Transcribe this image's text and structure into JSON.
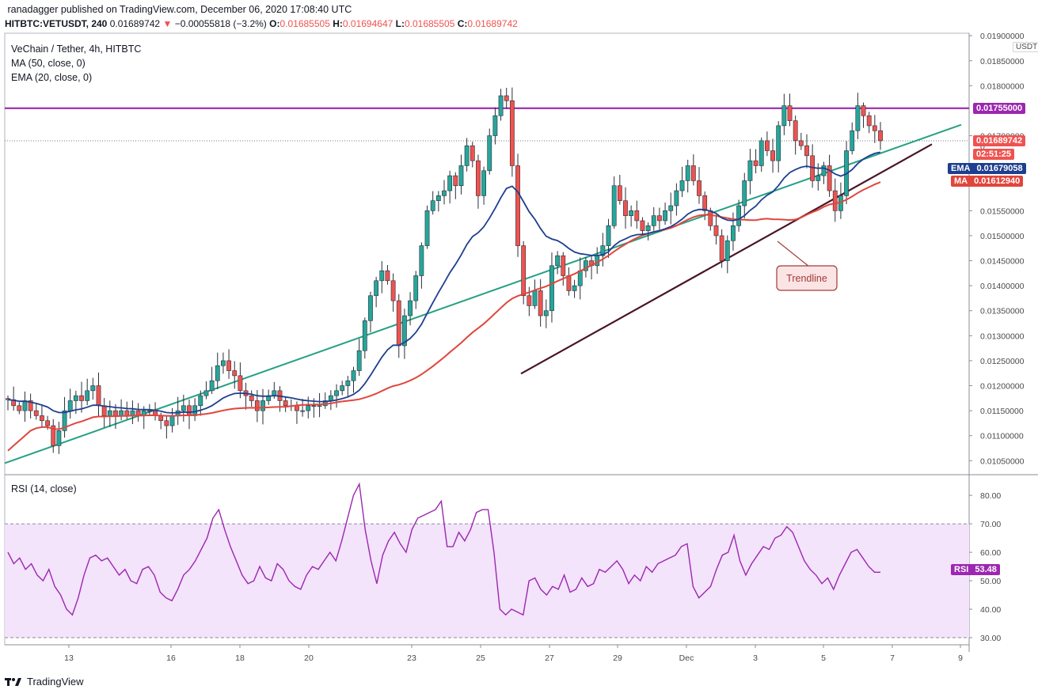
{
  "header": {
    "publisher": "ranadagger published on TradingView.com, December 06, 2020 17:08:40 UTC",
    "symbol": "HITBTC:VETUSDT, 240",
    "last": "0.01689742",
    "change_arrow": "▼",
    "change": "−0.00055818 (−3.2%)",
    "o_label": "O:",
    "o_value": "0.01685505",
    "h_label": "H:",
    "h_value": "0.01694647",
    "l_label": "L:",
    "l_value": "0.01685505",
    "c_label": "C:",
    "c_value": "0.01689742"
  },
  "legend": {
    "title": "VeChain / Tether, 4h, HITBTC",
    "ma": "MA (50, close, 0)",
    "ema": "EMA (20, close, 0)"
  },
  "price_axis": {
    "unit": "USDT",
    "ticks": [
      "0.01900000",
      "0.01850000",
      "0.01800000",
      "0.01700000",
      "0.01550000",
      "0.01500000",
      "0.01450000",
      "0.01400000",
      "0.01350000",
      "0.01300000",
      "0.01250000",
      "0.01200000",
      "0.01150000",
      "0.01100000",
      "0.01050000"
    ],
    "tick_values": [
      0.019,
      0.0185,
      0.018,
      0.017,
      0.0155,
      0.015,
      0.0145,
      0.014,
      0.0135,
      0.013,
      0.0125,
      0.012,
      0.0115,
      0.011,
      0.0105
    ],
    "range": [
      0.01022,
      0.01905
    ],
    "resistance_label": "0.01755000",
    "last_label": "0.01689742",
    "countdown": "02:51:25",
    "ema_tag": "EMA",
    "ema_value": "0.01679058",
    "ma_tag": "MA",
    "ma_value": "0.01612940",
    "partial_tick": "0"
  },
  "time_axis": {
    "labels": [
      "13",
      "16",
      "18",
      "20",
      "23",
      "25",
      "27",
      "29",
      "Dec",
      "3",
      "5",
      "7",
      "9"
    ]
  },
  "annotation": {
    "trendline": "Trendline"
  },
  "rsi": {
    "title": "RSI (14, close)",
    "ticks": [
      "80.00",
      "70.00",
      "60.00",
      "50.00",
      "40.00",
      "30.00"
    ],
    "tick_values": [
      80,
      70,
      60,
      50,
      40,
      30
    ],
    "range": [
      27.5,
      87
    ],
    "band": [
      30,
      70
    ],
    "tag": "RSI",
    "value": "53.48"
  },
  "footer": {
    "brand": "TradingView"
  },
  "colors": {
    "bull": "#26a69a",
    "bear": "#ef5350",
    "ema": "#1e3f8f",
    "ma": "#e0463c",
    "support": "#26a083",
    "trendline": "#4a1428",
    "resistance": "#9c27b0",
    "rsi": "#9c27b0",
    "rsi_band": "#f3e3fb"
  },
  "chart_data": [
    {
      "type": "candlestick",
      "title": "VeChain / Tether, 4h, HITBTC",
      "x": "date",
      "ylim": [
        0.01022,
        0.01905
      ],
      "candles_close_approx": [
        0.01172,
        0.0116,
        0.0115,
        0.0117,
        0.0115,
        0.0114,
        0.0113,
        0.0112,
        0.0108,
        0.0111,
        0.0115,
        0.0117,
        0.0118,
        0.0117,
        0.0119,
        0.012,
        0.0116,
        0.0114,
        0.0115,
        0.0114,
        0.0115,
        0.0114,
        0.0115,
        0.0114,
        0.0115,
        0.0115,
        0.0114,
        0.0113,
        0.0112,
        0.0114,
        0.0115,
        0.0116,
        0.0114,
        0.0116,
        0.0118,
        0.0119,
        0.0121,
        0.0124,
        0.0125,
        0.0123,
        0.0122,
        0.0119,
        0.0118,
        0.0117,
        0.0115,
        0.0117,
        0.0118,
        0.0119,
        0.0117,
        0.0116,
        0.0116,
        0.0115,
        0.0115,
        0.0116,
        0.0116,
        0.0116,
        0.0117,
        0.0118,
        0.0119,
        0.012,
        0.0121,
        0.0123,
        0.0127,
        0.0133,
        0.0138,
        0.0141,
        0.0143,
        0.0141,
        0.0137,
        0.0128,
        0.0134,
        0.0137,
        0.0142,
        0.0148,
        0.0155,
        0.0157,
        0.0158,
        0.0159,
        0.0162,
        0.016,
        0.0164,
        0.0168,
        0.0165,
        0.0158,
        0.0163,
        0.017,
        0.0174,
        0.0178,
        0.0177,
        0.0164,
        0.0148,
        0.0138,
        0.0136,
        0.0139,
        0.0134,
        0.0135,
        0.0144,
        0.0146,
        0.0142,
        0.0139,
        0.014,
        0.0143,
        0.0145,
        0.0144,
        0.0146,
        0.0148,
        0.0152,
        0.016,
        0.0157,
        0.0154,
        0.0155,
        0.0153,
        0.0151,
        0.0152,
        0.0154,
        0.0153,
        0.0155,
        0.0156,
        0.0159,
        0.0161,
        0.0164,
        0.0161,
        0.0158,
        0.0155,
        0.0152,
        0.015,
        0.0145,
        0.0149,
        0.0152,
        0.0156,
        0.0161,
        0.0165,
        0.0164,
        0.0169,
        0.0167,
        0.0165,
        0.0172,
        0.0176,
        0.0173,
        0.0169,
        0.0168,
        0.0166,
        0.0161,
        0.0162,
        0.0164,
        0.0159,
        0.0155,
        0.0158,
        0.0167,
        0.0171,
        0.0176,
        0.0174,
        0.0172,
        0.0171,
        0.0169
      ]
    },
    {
      "type": "line",
      "series": [
        {
          "name": "RSI (14, close)"
        }
      ],
      "ylim": [
        27.5,
        87
      ],
      "values": [
        60,
        56,
        58,
        54,
        56,
        52,
        50,
        54,
        48,
        45,
        40,
        38,
        44,
        52,
        58,
        59,
        57,
        58,
        55,
        52,
        54,
        50,
        49,
        54,
        55,
        52,
        46,
        44,
        43,
        47,
        52,
        54,
        57,
        61,
        65,
        72,
        75,
        68,
        62,
        57,
        52,
        49,
        50,
        55,
        51,
        50,
        56,
        54,
        50,
        48,
        47,
        52,
        55,
        54,
        57,
        60,
        57,
        64,
        72,
        80,
        84,
        68,
        57,
        49,
        59,
        64,
        67,
        63,
        60,
        68,
        72,
        73,
        74,
        75,
        78,
        62,
        62,
        67,
        64,
        68,
        74,
        75,
        75,
        60,
        40,
        38,
        40,
        39,
        38,
        50,
        51,
        47,
        45,
        48,
        47,
        52,
        46,
        47,
        51,
        48,
        49,
        54,
        53,
        55,
        57,
        54,
        49,
        52,
        50,
        55,
        53,
        56,
        57,
        58,
        59,
        62,
        63,
        48,
        44,
        46,
        48,
        54,
        59,
        60,
        66,
        57,
        52,
        56,
        59,
        62,
        61,
        65,
        66,
        69,
        67,
        62,
        57,
        54,
        52,
        49,
        51,
        47,
        52,
        56,
        60,
        61,
        58,
        55,
        53,
        53
      ]
    }
  ]
}
